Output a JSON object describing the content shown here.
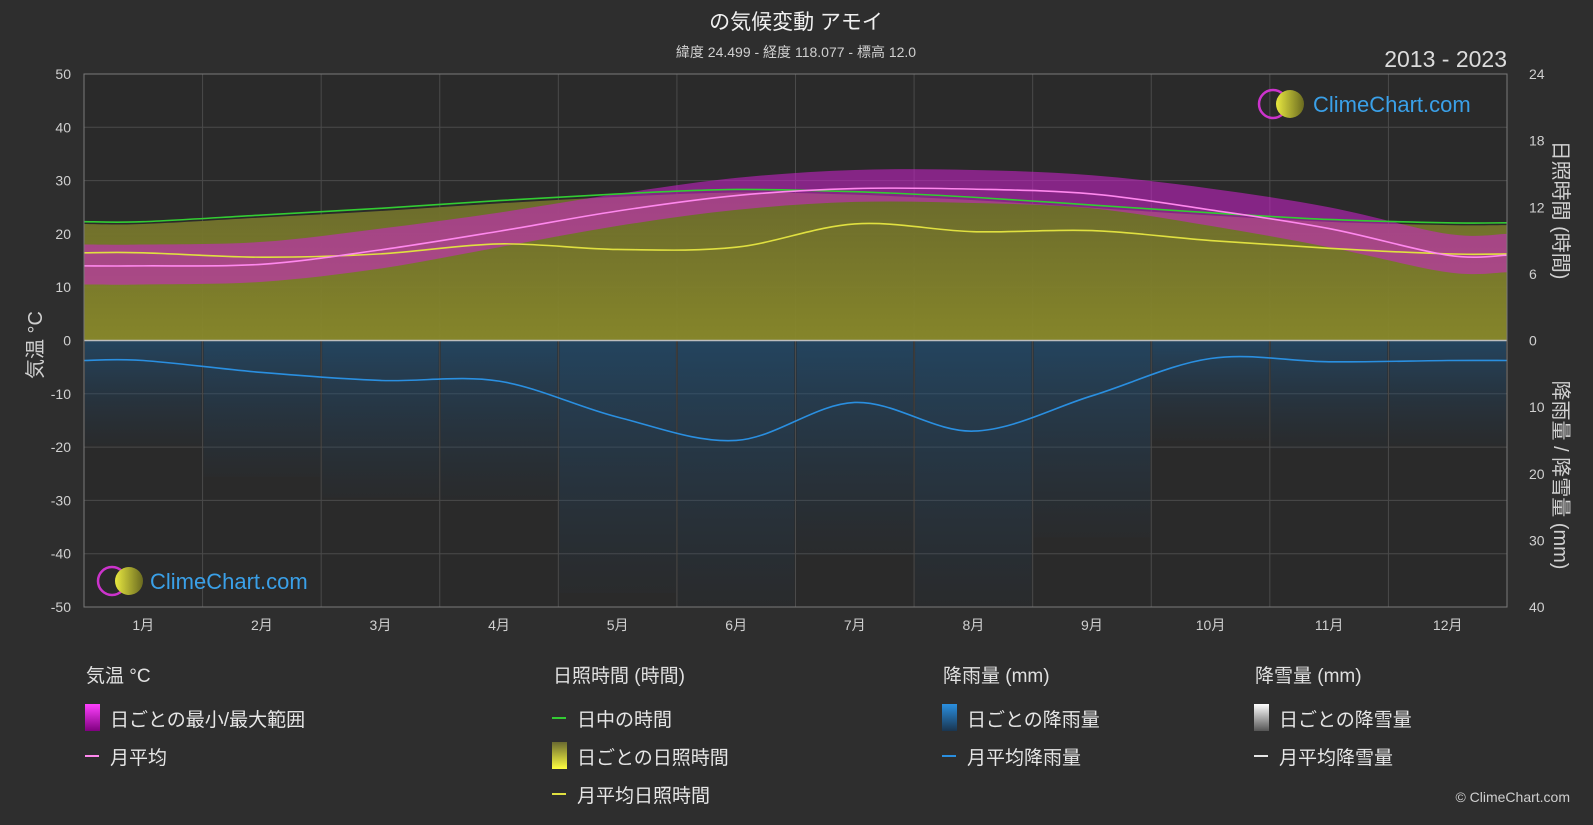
{
  "chart_data": {
    "type": "area",
    "title": "の気候変動 アモイ",
    "subtitle": "緯度 24.499 - 経度 118.077 - 標高 12.0",
    "period": "2013 - 2023",
    "categories": [
      "1月",
      "2月",
      "3月",
      "4月",
      "5月",
      "6月",
      "7月",
      "8月",
      "9月",
      "10月",
      "11月",
      "12月"
    ],
    "y_left": {
      "label": "気温 °C",
      "range": [
        -50,
        50
      ],
      "ticks": [
        50,
        40,
        30,
        20,
        10,
        0,
        -10,
        -20,
        -30,
        -40,
        -50
      ]
    },
    "y_right_top": {
      "label": "日照時間 (時間)",
      "range": [
        0,
        24
      ],
      "ticks": [
        24,
        18,
        12,
        6,
        0
      ]
    },
    "y_right_bottom": {
      "label": "降雨量 / 降雪量 (mm)",
      "range": [
        0,
        40
      ],
      "ticks": [
        10,
        20,
        30,
        40
      ]
    },
    "series": [
      {
        "name": "日中の時間",
        "unit": "時間",
        "color": "#33cc33",
        "values": [
          10.7,
          11.3,
          11.9,
          12.6,
          13.2,
          13.6,
          13.4,
          12.9,
          12.2,
          11.5,
          10.9,
          10.6
        ]
      },
      {
        "name": "月平均日照時間",
        "unit": "時間",
        "color": "#e0e040",
        "values": [
          7.9,
          7.5,
          7.8,
          8.7,
          8.2,
          8.4,
          10.5,
          9.8,
          9.9,
          9.0,
          8.3,
          7.8
        ]
      },
      {
        "name": "月平均",
        "unit": "°C",
        "color": "#ff88ee",
        "values": [
          14.0,
          14.3,
          17.0,
          20.5,
          24.3,
          27.2,
          28.5,
          28.4,
          27.5,
          24.5,
          21.0,
          16.0
        ]
      },
      {
        "name": "日ごとの最小/最大範囲",
        "unit": "°C",
        "color": "#d020d0",
        "min": [
          10.5,
          11.0,
          13.5,
          17.5,
          21.5,
          24.5,
          26.0,
          25.8,
          24.8,
          21.5,
          17.5,
          12.8
        ],
        "max": [
          18.0,
          18.5,
          21.0,
          24.0,
          27.5,
          30.5,
          32.0,
          32.0,
          31.0,
          28.5,
          25.0,
          20.0
        ]
      },
      {
        "name": "月平均降雨量",
        "unit": "mm",
        "color": "#2a8fe0",
        "values": [
          3.0,
          4.8,
          6.0,
          6.1,
          11.5,
          15.0,
          9.3,
          13.6,
          8.3,
          2.7,
          3.2,
          3.0
        ]
      },
      {
        "name": "月平均降雪量",
        "unit": "mm",
        "color": "#e6e6e6",
        "values": [
          0,
          0,
          0,
          0,
          0,
          0,
          0,
          0,
          0,
          0,
          0,
          0
        ]
      }
    ],
    "grid": true
  },
  "legend": {
    "groups": [
      {
        "title": "気温 °C",
        "items": [
          {
            "label": "日ごとの最小/最大範囲",
            "swatch": "box",
            "color": "#e020e0"
          },
          {
            "label": "月平均",
            "swatch": "line",
            "color": "#ff88ee"
          }
        ]
      },
      {
        "title": "日照時間 (時間)",
        "items": [
          {
            "label": "日中の時間",
            "swatch": "line",
            "color": "#33cc33"
          },
          {
            "label": "日ごとの日照時間",
            "swatch": "box",
            "color": "#d8d830"
          },
          {
            "label": "月平均日照時間",
            "swatch": "line",
            "color": "#e0e040"
          }
        ]
      },
      {
        "title": "降雨量 (mm)",
        "items": [
          {
            "label": "日ごとの降雨量",
            "swatch": "box",
            "color": "#2a8fe0"
          },
          {
            "label": "月平均降雨量",
            "swatch": "line",
            "color": "#2a8fe0"
          }
        ]
      },
      {
        "title": "降雪量 (mm)",
        "items": [
          {
            "label": "日ごとの降雪量",
            "swatch": "box",
            "color": "#e6e6e6"
          },
          {
            "label": "月平均降雪量",
            "swatch": "line",
            "color": "#e6e6e6"
          }
        ]
      }
    ]
  },
  "brand": {
    "name": "ClimeChart.com",
    "copyright": "© ClimeChart.com"
  }
}
